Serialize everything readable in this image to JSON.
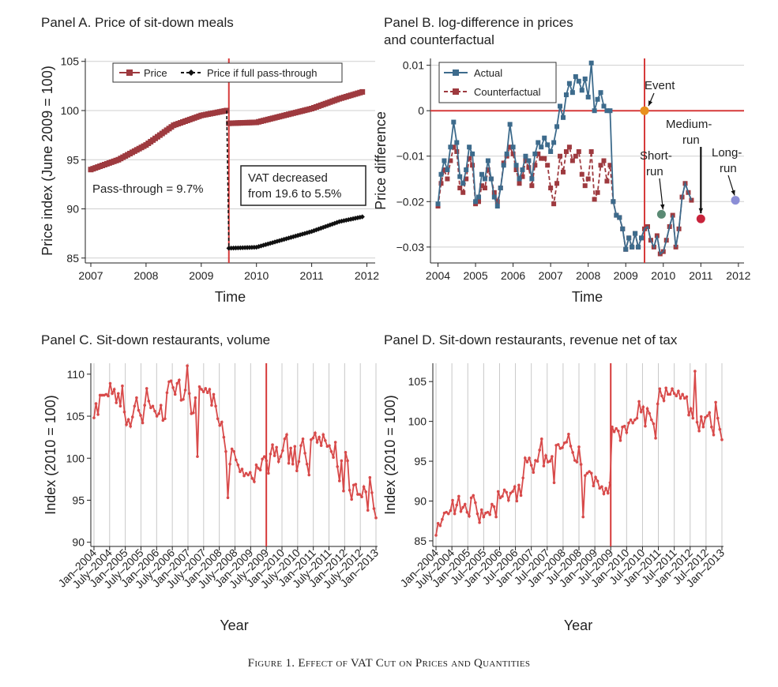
{
  "figure": {
    "caption": "Figure 1. Effect of VAT Cut on Prices and Quantities"
  },
  "colors": {
    "price": "#9e3a3f",
    "passthrough": "#111111",
    "actual": "#3d6b8c",
    "counterfactual": "#9e3a3f",
    "series_cd": "#d84a4a",
    "event_line": "#d63a3a",
    "event_point": "#e8901e",
    "short_point": "#5a8a74",
    "medium_point": "#c8233b",
    "long_point": "#8b8ed6"
  },
  "chart_data": [
    {
      "id": "A",
      "type": "line",
      "title": "Panel A. Price of sit-down meals",
      "xlabel": "Time",
      "ylabel": "Price index (June 2009 = 100)",
      "xlim": [
        2006.9,
        2012.15
      ],
      "ylim": [
        84.5,
        105.3
      ],
      "xticks": [
        2007,
        2008,
        2009,
        2010,
        2011,
        2012
      ],
      "yticks": [
        85,
        90,
        95,
        100,
        105
      ],
      "grid": "horizontal",
      "legend": {
        "position": "top-center",
        "entries": [
          "Price",
          "Price if full pass-through"
        ]
      },
      "vline": 2009.5,
      "annotations": [
        "Pass-through = 9.7%",
        "VAT decreased",
        "from 19.6 to 5.5%"
      ],
      "series": [
        {
          "name": "Price",
          "marker": "square",
          "points": [
            [
              2007.0,
              94.0
            ],
            [
              2007.5,
              95.0
            ],
            [
              2008.0,
              96.5
            ],
            [
              2008.5,
              98.5
            ],
            [
              2009.0,
              99.5
            ],
            [
              2009.46,
              100.0
            ],
            [
              2009.5,
              98.7
            ],
            [
              2010.0,
              98.8
            ],
            [
              2010.5,
              99.5
            ],
            [
              2011.0,
              100.2
            ],
            [
              2011.5,
              101.2
            ],
            [
              2011.92,
              101.9
            ]
          ]
        },
        {
          "name": "Price if full pass-through",
          "marker": "diamond",
          "dash": true,
          "points": [
            [
              2009.46,
              100.0
            ],
            [
              2009.5,
              86.0
            ],
            [
              2010.0,
              86.1
            ],
            [
              2010.5,
              86.9
            ],
            [
              2011.0,
              87.7
            ],
            [
              2011.5,
              88.7
            ],
            [
              2011.92,
              89.2
            ]
          ]
        }
      ]
    },
    {
      "id": "B",
      "type": "line",
      "title": "Panel B. log-difference in prices",
      "title2": "and counterfactual",
      "xlabel": "Time",
      "ylabel": "Price difference",
      "xlim": [
        2003.8,
        2012.15
      ],
      "ylim": [
        -0.0335,
        0.0115
      ],
      "xticks": [
        2004,
        2005,
        2006,
        2007,
        2008,
        2009,
        2010,
        2011,
        2012
      ],
      "yticks": [
        0.01,
        0,
        -0.01,
        -0.02,
        -0.03
      ],
      "ytick_labels": [
        "0.01",
        "0",
        "−0.01",
        "−0.02",
        "−0.03"
      ],
      "grid": "horizontal",
      "legend": {
        "position": "top-left",
        "entries": [
          "Actual",
          "Counterfactual"
        ]
      },
      "vline": 2009.5,
      "hline": 0,
      "annotations": [
        "Event",
        "Medium-",
        "run",
        "Short-",
        "run",
        "Long-",
        "run"
      ],
      "points": {
        "event": [
          2009.5,
          0.0
        ],
        "short_run": [
          2009.95,
          -0.0228
        ],
        "medium_run": [
          2011.0,
          -0.0238
        ],
        "long_run": [
          2011.92,
          -0.0197
        ]
      },
      "series": [
        {
          "name": "Actual",
          "marker": "square",
          "values": [
            -0.0205,
            -0.014,
            -0.011,
            -0.013,
            -0.008,
            -0.0025,
            -0.007,
            -0.0145,
            -0.016,
            -0.013,
            -0.008,
            -0.0095,
            -0.02,
            -0.019,
            -0.014,
            -0.015,
            -0.011,
            -0.015,
            -0.019,
            -0.021,
            -0.017,
            -0.012,
            -0.0095,
            -0.003,
            -0.008,
            -0.012,
            -0.015,
            -0.013,
            -0.01,
            -0.011,
            -0.015,
            -0.0095,
            -0.007,
            -0.008,
            -0.006,
            -0.0075,
            -0.009,
            -0.007,
            -0.0035,
            0.001,
            -0.0015,
            0.0035,
            0.006,
            0.004,
            0.0075,
            0.0065,
            0.0045,
            0.007,
            0.003,
            0.0105,
            0.0,
            0.0025,
            0.004,
            0.001,
            0.0,
            0.0,
            -0.02,
            -0.023,
            -0.0235,
            -0.026,
            -0.0305,
            -0.028,
            -0.03,
            -0.027,
            -0.03,
            -0.028,
            -0.026,
            -0.0255,
            -0.0285,
            -0.03,
            -0.0275,
            -0.0315,
            -0.031,
            -0.0285,
            -0.0255,
            -0.023,
            -0.03,
            -0.026,
            -0.019,
            -0.016,
            -0.018,
            -0.0197
          ]
        },
        {
          "name": "Counterfactual",
          "marker": "square",
          "dash": true,
          "values": [
            -0.021,
            -0.016,
            -0.013,
            -0.015,
            -0.011,
            -0.008,
            -0.009,
            -0.017,
            -0.018,
            -0.015,
            -0.0105,
            -0.012,
            -0.0205,
            -0.02,
            -0.0165,
            -0.017,
            -0.013,
            -0.015,
            -0.018,
            -0.02,
            -0.017,
            -0.0115,
            -0.01,
            -0.008,
            -0.0095,
            -0.013,
            -0.016,
            -0.0145,
            -0.011,
            -0.0125,
            -0.0165,
            -0.012,
            -0.0095,
            -0.0105,
            -0.0105,
            -0.012,
            -0.017,
            -0.0205,
            -0.016,
            -0.01,
            -0.0135,
            -0.009,
            -0.008,
            -0.011,
            -0.01,
            -0.009,
            -0.014,
            -0.0165,
            -0.015,
            -0.009,
            -0.0195,
            -0.018,
            -0.012,
            -0.011,
            -0.0155,
            -0.012,
            -0.02,
            -0.023,
            -0.0235,
            -0.026,
            -0.0305,
            -0.028,
            -0.03,
            -0.027,
            -0.03,
            -0.028,
            -0.026,
            -0.0255,
            -0.0285,
            -0.03,
            -0.0275,
            -0.0315,
            -0.031,
            -0.0285,
            -0.0255,
            -0.023,
            -0.03,
            -0.026,
            -0.019,
            -0.016,
            -0.018,
            -0.0197
          ]
        }
      ]
    },
    {
      "id": "C",
      "type": "line",
      "title": "Panel C. Sit-down restaurants, volume",
      "xlabel": "Year",
      "ylabel": "Index (2010 = 100)",
      "xlim": [
        2003.9,
        2013.05
      ],
      "ylim": [
        89.5,
        111.3
      ],
      "xticks": [
        2004,
        2004.5,
        2005,
        2005.5,
        2006,
        2006.5,
        2007,
        2007.5,
        2008,
        2008.5,
        2009,
        2009.5,
        2010,
        2010.5,
        2011,
        2011.5,
        2012,
        2012.5,
        2013
      ],
      "xtick_labels": [
        "Jan–2004",
        "July–2004",
        "Jan–2005",
        "July–2005",
        "Jan–2006",
        "July–2006",
        "Jan–2007",
        "July–2007",
        "Jan–2008",
        "July–2008",
        "Jan–2009",
        "July–2009",
        "Jan–2010",
        "July–2010",
        "Jan–2011",
        "July–2011",
        "Jan–2012",
        "July–2012",
        "Jan–2013"
      ],
      "yticks": [
        90,
        95,
        100,
        105,
        110
      ],
      "grid": "vertical",
      "vline": 2009.5,
      "series": [
        {
          "name": "",
          "values": [
            104.8,
            106.5,
            105.2,
            107.5,
            107.5,
            107.5,
            107.6,
            107.4,
            108.9,
            107.7,
            108.2,
            106.6,
            107.7,
            106.2,
            108.6,
            105.5,
            104.0,
            104.6,
            103.8,
            104.9,
            106.2,
            107.2,
            105.7,
            105.1,
            104.2,
            106.3,
            108.3,
            106.8,
            106.0,
            106.2,
            105.6,
            105.0,
            105.3,
            106.3,
            104.5,
            104.7,
            107.8,
            109.1,
            109.2,
            108.4,
            107.6,
            108.9,
            109.3,
            106.9,
            107.0,
            108.1,
            111.0,
            107.7,
            105.3,
            105.4,
            107.2,
            100.2,
            108.5,
            108.2,
            107.9,
            108.3,
            107.8,
            108.2,
            106.3,
            107.6,
            106.2,
            104.7,
            103.9,
            104.3,
            102.5,
            100.8,
            95.3,
            99.3,
            101.1,
            100.8,
            99.8,
            99.2,
            98.4,
            98.7,
            97.9,
            98.2,
            98.0,
            98.3,
            97.6,
            97.2,
            99.2,
            98.8,
            98.6,
            99.9,
            100.2,
            99.7,
            98.2,
            100.5,
            101.6,
            100.3,
            101.3,
            99.6,
            100.2,
            100.9,
            102.3,
            102.8,
            99.4,
            101.2,
            99.3,
            101.4,
            98.5,
            99.6,
            101.5,
            102.3,
            100.6,
            99.3,
            98.0,
            102.2,
            102.4,
            103.0,
            101.9,
            102.5,
            101.5,
            102.8,
            102.1,
            101.4,
            101.5,
            100.8,
            100.1,
            101.9,
            99.0,
            97.3,
            99.7,
            96.1,
            100.7,
            99.7,
            96.2,
            95.1,
            96.8,
            96.9,
            95.7,
            95.7,
            95.4,
            96.6,
            96.0,
            93.8,
            97.7,
            95.9,
            94.0,
            92.9
          ]
        }
      ]
    },
    {
      "id": "D",
      "type": "line",
      "title": "Panel D. Sit-down restaurants, revenue net of tax",
      "xlabel": "Year",
      "ylabel": "Index (2010 = 100)",
      "xlim": [
        2003.9,
        2013.05
      ],
      "ylim": [
        84.3,
        107.3
      ],
      "xticks": [
        2004,
        2004.5,
        2005,
        2005.5,
        2006,
        2006.5,
        2007,
        2007.5,
        2008,
        2008.5,
        2009,
        2009.5,
        2010,
        2010.5,
        2011,
        2011.5,
        2012,
        2012.5,
        2013
      ],
      "xtick_labels": [
        "Jan–2004",
        "July–2004",
        "Jan–2005",
        "Jul–2005",
        "Jan–2006",
        "Jul–2006",
        "Jan–2007",
        "Jul–2007",
        "Jan–2008",
        "Jul–2008",
        "Jan–2009",
        "Jul–2009",
        "Jan–2010",
        "Jul–2010",
        "Jan–2011",
        "Jul–2011",
        "Jan–2012",
        "Jul–2012",
        "Jan–2013"
      ],
      "yticks": [
        85,
        90,
        95,
        100,
        105
      ],
      "grid": "vertical",
      "vline": 2009.5,
      "series": [
        {
          "name": "",
          "values": [
            85.7,
            87.2,
            86.9,
            87.7,
            88.5,
            88.6,
            88.4,
            88.8,
            90.1,
            88.4,
            89.5,
            90.6,
            88.7,
            89.2,
            89.6,
            88.6,
            88.1,
            90.4,
            90.7,
            89.8,
            88.4,
            87.3,
            88.9,
            88.0,
            88.5,
            88.6,
            88.3,
            89.6,
            89.3,
            88.0,
            91.2,
            90.4,
            90.6,
            91.4,
            91.1,
            90.1,
            91.0,
            91.2,
            91.8,
            90.0,
            92.0,
            90.7,
            92.9,
            95.4,
            94.9,
            95.4,
            94.5,
            93.6,
            95.1,
            95.0,
            96.4,
            97.8,
            94.4,
            95.7,
            94.9,
            95.0,
            95.6,
            92.3,
            97.0,
            97.1,
            96.6,
            96.7,
            97.3,
            97.4,
            98.4,
            96.9,
            96.1,
            95.1,
            94.9,
            96.8,
            94.6,
            88.0,
            93.2,
            93.5,
            93.7,
            93.5,
            91.9,
            93.0,
            92.5,
            91.6,
            91.8,
            90.9,
            91.6,
            91.0,
            92.3,
            99.3,
            98.7,
            99.1,
            98.8,
            97.6,
            99.3,
            99.4,
            98.6,
            99.8,
            100.2,
            99.8,
            100.2,
            100.4,
            102.5,
            101.2,
            101.8,
            99.4,
            101.6,
            101.0,
            100.2,
            99.7,
            97.9,
            102.2,
            104.1,
            103.2,
            102.6,
            104.2,
            103.4,
            103.4,
            104.1,
            103.5,
            103.2,
            103.8,
            102.9,
            103.4,
            102.9,
            103.1,
            100.8,
            101.6,
            100.4,
            106.3,
            99.9,
            98.8,
            100.6,
            99.3,
            100.5,
            100.7,
            101.1,
            99.3,
            98.3,
            102.4,
            100.4,
            99.0,
            97.7
          ]
        }
      ]
    }
  ]
}
